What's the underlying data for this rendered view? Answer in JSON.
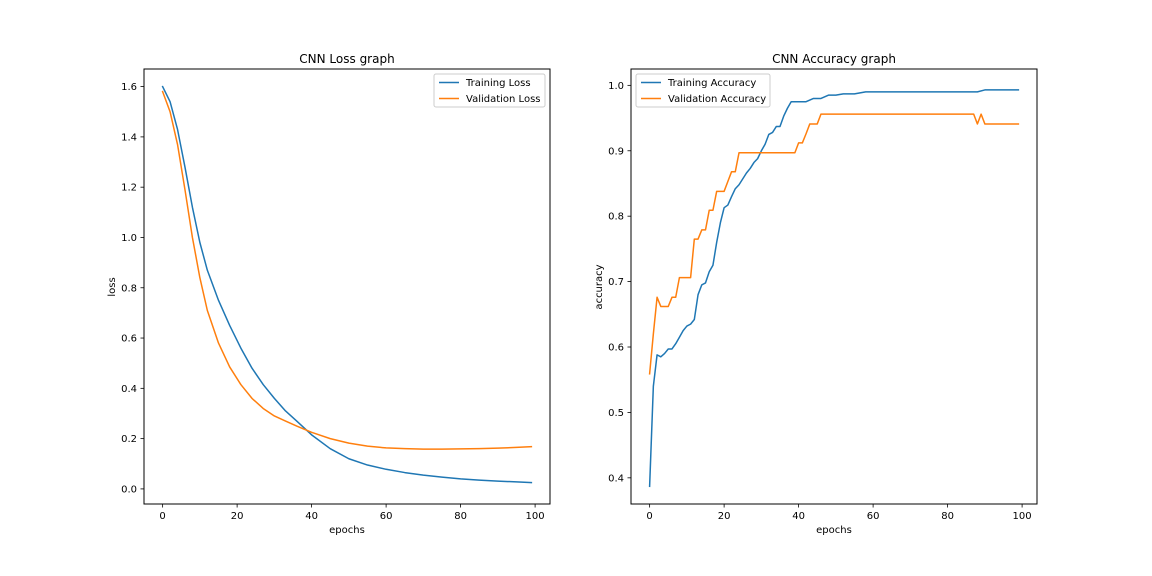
{
  "colors": {
    "training": "#1f77b4",
    "validation": "#ff7f0e"
  },
  "chart_data": [
    {
      "type": "line",
      "title": "CNN Loss graph",
      "xlabel": "epochs",
      "ylabel": "loss",
      "xlim": [
        -5,
        104
      ],
      "ylim": [
        -0.06,
        1.67
      ],
      "xticks": [
        0,
        20,
        40,
        60,
        80,
        100
      ],
      "xtick_labels": [
        "0",
        "20",
        "40",
        "60",
        "80",
        "100"
      ],
      "yticks": [
        0.0,
        0.2,
        0.4,
        0.6,
        0.8,
        1.0,
        1.2,
        1.4,
        1.6
      ],
      "ytick_labels": [
        "0.0",
        "0.2",
        "0.4",
        "0.6",
        "0.8",
        "1.0",
        "1.2",
        "1.4",
        "1.6"
      ],
      "legend": "top-right",
      "grid": false,
      "series": [
        {
          "name": "Training Loss",
          "color_key": "training",
          "x": [
            0,
            2,
            4,
            6,
            8,
            10,
            12,
            15,
            18,
            21,
            24,
            27,
            30,
            33,
            36,
            40,
            45,
            50,
            55,
            60,
            65,
            70,
            75,
            80,
            85,
            90,
            95,
            99
          ],
          "y": [
            1.6,
            1.54,
            1.43,
            1.28,
            1.12,
            0.98,
            0.87,
            0.75,
            0.65,
            0.56,
            0.48,
            0.415,
            0.36,
            0.31,
            0.27,
            0.215,
            0.16,
            0.12,
            0.095,
            0.078,
            0.065,
            0.055,
            0.047,
            0.04,
            0.035,
            0.031,
            0.028,
            0.025
          ]
        },
        {
          "name": "Validation Loss",
          "color_key": "validation",
          "x": [
            0,
            2,
            4,
            6,
            8,
            10,
            12,
            15,
            18,
            21,
            24,
            27,
            30,
            33,
            36,
            40,
            45,
            50,
            55,
            60,
            65,
            70,
            75,
            80,
            85,
            90,
            95,
            99
          ],
          "y": [
            1.58,
            1.5,
            1.37,
            1.19,
            1.0,
            0.84,
            0.71,
            0.58,
            0.485,
            0.415,
            0.36,
            0.32,
            0.29,
            0.27,
            0.25,
            0.225,
            0.2,
            0.182,
            0.17,
            0.163,
            0.16,
            0.158,
            0.158,
            0.159,
            0.16,
            0.162,
            0.165,
            0.168
          ]
        }
      ]
    },
    {
      "type": "line",
      "title": "CNN Accuracy graph",
      "xlabel": "epochs",
      "ylabel": "accuracy",
      "xlim": [
        -5,
        104
      ],
      "ylim": [
        0.36,
        1.025
      ],
      "xticks": [
        0,
        20,
        40,
        60,
        80,
        100
      ],
      "xtick_labels": [
        "0",
        "20",
        "40",
        "60",
        "80",
        "100"
      ],
      "yticks": [
        0.4,
        0.5,
        0.6,
        0.7,
        0.8,
        0.9,
        1.0
      ],
      "ytick_labels": [
        "0.4",
        "0.5",
        "0.6",
        "0.7",
        "0.8",
        "0.9",
        "1.0"
      ],
      "legend": "top-left",
      "grid": false,
      "series": [
        {
          "name": "Training Accuracy",
          "color_key": "training",
          "x": [
            0,
            1,
            2,
            3,
            4,
            5,
            6,
            7,
            8,
            9,
            10,
            11,
            12,
            13,
            14,
            15,
            16,
            17,
            18,
            19,
            20,
            21,
            22,
            23,
            24,
            25,
            26,
            27,
            28,
            29,
            30,
            31,
            32,
            33,
            34,
            35,
            36,
            37,
            38,
            40,
            42,
            44,
            46,
            48,
            50,
            52,
            55,
            58,
            60,
            65,
            70,
            75,
            80,
            85,
            88,
            90,
            92,
            95,
            99
          ],
          "y": [
            0.387,
            0.54,
            0.588,
            0.585,
            0.59,
            0.597,
            0.597,
            0.605,
            0.615,
            0.625,
            0.632,
            0.635,
            0.642,
            0.68,
            0.695,
            0.698,
            0.715,
            0.725,
            0.76,
            0.79,
            0.813,
            0.817,
            0.83,
            0.842,
            0.848,
            0.857,
            0.866,
            0.873,
            0.882,
            0.888,
            0.9,
            0.91,
            0.925,
            0.928,
            0.937,
            0.937,
            0.953,
            0.965,
            0.975,
            0.975,
            0.975,
            0.98,
            0.98,
            0.985,
            0.985,
            0.987,
            0.987,
            0.99,
            0.99,
            0.99,
            0.99,
            0.99,
            0.99,
            0.99,
            0.99,
            0.993,
            0.993,
            0.993,
            0.993
          ]
        },
        {
          "name": "Validation Accuracy",
          "color_key": "validation",
          "x": [
            0,
            1,
            2,
            3,
            4,
            5,
            6,
            7,
            8,
            9,
            10,
            11,
            12,
            13,
            14,
            15,
            16,
            17,
            18,
            19,
            20,
            21,
            22,
            23,
            24,
            25,
            27,
            30,
            33,
            36,
            39,
            40,
            41,
            42,
            43,
            44,
            45,
            46,
            47,
            50,
            55,
            60,
            65,
            70,
            75,
            80,
            85,
            87,
            88,
            89,
            90,
            92,
            95,
            99
          ],
          "y": [
            0.559,
            0.62,
            0.676,
            0.662,
            0.662,
            0.662,
            0.676,
            0.676,
            0.706,
            0.706,
            0.706,
            0.706,
            0.765,
            0.765,
            0.779,
            0.779,
            0.809,
            0.809,
            0.838,
            0.838,
            0.838,
            0.853,
            0.868,
            0.868,
            0.897,
            0.897,
            0.897,
            0.897,
            0.897,
            0.897,
            0.897,
            0.912,
            0.912,
            0.926,
            0.941,
            0.941,
            0.941,
            0.956,
            0.956,
            0.956,
            0.956,
            0.956,
            0.956,
            0.956,
            0.956,
            0.956,
            0.956,
            0.956,
            0.941,
            0.956,
            0.941,
            0.941,
            0.941,
            0.941
          ]
        }
      ]
    }
  ]
}
